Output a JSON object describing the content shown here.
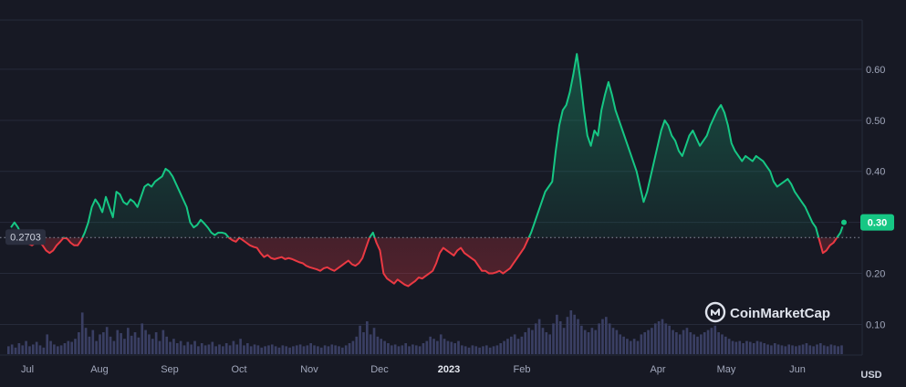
{
  "chart_data": {
    "type": "area",
    "ylim": [
      0.04,
      0.7
    ],
    "y_ticks": [
      "0.10",
      "0.20",
      "0.30",
      "0.40",
      "0.50",
      "0.60"
    ],
    "x_ticks": [
      "Jul",
      "Aug",
      "Sep",
      "Oct",
      "Nov",
      "Dec",
      "2023",
      "Feb",
      "Apr",
      "May",
      "Jun"
    ],
    "bold_tick": "2023",
    "currency_label": "USD",
    "reference_value": 0.2703,
    "reference_label": "0.2703",
    "current_value": 0.3,
    "current_label": "0.30",
    "watermark": "CoinMarketCap",
    "grid": true,
    "colors": {
      "up": "#16c784",
      "down": "#ea3943",
      "volume": "#3a3f63",
      "grid": "#262a3a"
    },
    "series": [
      {
        "values": [
          0.29,
          0.3,
          0.29,
          0.275,
          0.265,
          0.258,
          0.255,
          0.26,
          0.262,
          0.255,
          0.245,
          0.24,
          0.245,
          0.255,
          0.262,
          0.27,
          0.268,
          0.26,
          0.255,
          0.255,
          0.265,
          0.28,
          0.3,
          0.33,
          0.345,
          0.335,
          0.32,
          0.35,
          0.33,
          0.31,
          0.36,
          0.355,
          0.34,
          0.335,
          0.345,
          0.34,
          0.33,
          0.35,
          0.37,
          0.375,
          0.37,
          0.38,
          0.385,
          0.39,
          0.405,
          0.4,
          0.39,
          0.375,
          0.36,
          0.345,
          0.33,
          0.3,
          0.29,
          0.295,
          0.305,
          0.298,
          0.29,
          0.28,
          0.275,
          0.28,
          0.28,
          0.278,
          0.27,
          0.265,
          0.262,
          0.27,
          0.265,
          0.26,
          0.255,
          0.252,
          0.25,
          0.24,
          0.232,
          0.236,
          0.23,
          0.228,
          0.23,
          0.232,
          0.228,
          0.23,
          0.228,
          0.225,
          0.222,
          0.22,
          0.215,
          0.212,
          0.21,
          0.208,
          0.205,
          0.21,
          0.212,
          0.208,
          0.205,
          0.21,
          0.215,
          0.22,
          0.225,
          0.218,
          0.215,
          0.22,
          0.23,
          0.25,
          0.27,
          0.28,
          0.26,
          0.245,
          0.2,
          0.19,
          0.185,
          0.18,
          0.188,
          0.183,
          0.178,
          0.175,
          0.18,
          0.185,
          0.192,
          0.19,
          0.195,
          0.2,
          0.205,
          0.22,
          0.24,
          0.25,
          0.245,
          0.24,
          0.235,
          0.245,
          0.25,
          0.24,
          0.235,
          0.23,
          0.225,
          0.215,
          0.205,
          0.205,
          0.2,
          0.2,
          0.202,
          0.205,
          0.2,
          0.205,
          0.21,
          0.22,
          0.23,
          0.24,
          0.25,
          0.265,
          0.28,
          0.3,
          0.32,
          0.34,
          0.36,
          0.37,
          0.38,
          0.44,
          0.49,
          0.52,
          0.53,
          0.555,
          0.59,
          0.63,
          0.58,
          0.52,
          0.47,
          0.45,
          0.48,
          0.47,
          0.52,
          0.55,
          0.575,
          0.55,
          0.52,
          0.5,
          0.48,
          0.46,
          0.44,
          0.42,
          0.4,
          0.37,
          0.34,
          0.36,
          0.39,
          0.42,
          0.45,
          0.48,
          0.5,
          0.49,
          0.47,
          0.46,
          0.44,
          0.43,
          0.45,
          0.47,
          0.48,
          0.465,
          0.45,
          0.46,
          0.47,
          0.49,
          0.505,
          0.52,
          0.53,
          0.515,
          0.49,
          0.455,
          0.44,
          0.43,
          0.42,
          0.43,
          0.425,
          0.42,
          0.43,
          0.425,
          0.42,
          0.41,
          0.4,
          0.38,
          0.37,
          0.375,
          0.38,
          0.385,
          0.375,
          0.36,
          0.35,
          0.34,
          0.33,
          0.315,
          0.3,
          0.29,
          0.265,
          0.24,
          0.245,
          0.255,
          0.26,
          0.27,
          0.28,
          0.3
        ]
      }
    ],
    "volume": [
      0.18,
      0.22,
      0.15,
      0.25,
      0.2,
      0.3,
      0.18,
      0.22,
      0.28,
      0.2,
      0.15,
      0.45,
      0.3,
      0.22,
      0.18,
      0.2,
      0.25,
      0.3,
      0.28,
      0.35,
      0.5,
      0.95,
      0.6,
      0.4,
      0.55,
      0.3,
      0.45,
      0.5,
      0.62,
      0.4,
      0.3,
      0.55,
      0.48,
      0.35,
      0.6,
      0.42,
      0.5,
      0.38,
      0.7,
      0.55,
      0.45,
      0.35,
      0.5,
      0.3,
      0.55,
      0.4,
      0.28,
      0.35,
      0.25,
      0.3,
      0.2,
      0.28,
      0.22,
      0.3,
      0.18,
      0.25,
      0.2,
      0.22,
      0.28,
      0.18,
      0.22,
      0.18,
      0.25,
      0.2,
      0.3,
      0.22,
      0.35,
      0.2,
      0.25,
      0.18,
      0.22,
      0.2,
      0.15,
      0.18,
      0.2,
      0.22,
      0.18,
      0.15,
      0.2,
      0.18,
      0.15,
      0.18,
      0.2,
      0.22,
      0.18,
      0.2,
      0.25,
      0.2,
      0.18,
      0.15,
      0.2,
      0.18,
      0.22,
      0.2,
      0.18,
      0.15,
      0.2,
      0.25,
      0.3,
      0.4,
      0.65,
      0.5,
      0.75,
      0.45,
      0.6,
      0.4,
      0.35,
      0.3,
      0.25,
      0.2,
      0.22,
      0.18,
      0.2,
      0.25,
      0.18,
      0.22,
      0.2,
      0.18,
      0.25,
      0.3,
      0.4,
      0.35,
      0.3,
      0.45,
      0.35,
      0.3,
      0.28,
      0.25,
      0.3,
      0.2,
      0.18,
      0.15,
      0.2,
      0.18,
      0.15,
      0.18,
      0.2,
      0.15,
      0.18,
      0.2,
      0.25,
      0.3,
      0.35,
      0.4,
      0.45,
      0.35,
      0.4,
      0.5,
      0.6,
      0.55,
      0.7,
      0.8,
      0.6,
      0.5,
      0.45,
      0.7,
      0.9,
      0.75,
      0.6,
      0.85,
      1.0,
      0.9,
      0.8,
      0.65,
      0.55,
      0.5,
      0.6,
      0.55,
      0.7,
      0.8,
      0.85,
      0.7,
      0.6,
      0.55,
      0.45,
      0.4,
      0.35,
      0.3,
      0.35,
      0.3,
      0.45,
      0.5,
      0.55,
      0.6,
      0.7,
      0.75,
      0.8,
      0.7,
      0.65,
      0.55,
      0.5,
      0.45,
      0.55,
      0.6,
      0.5,
      0.45,
      0.4,
      0.45,
      0.5,
      0.55,
      0.6,
      0.65,
      0.5,
      0.45,
      0.4,
      0.35,
      0.3,
      0.28,
      0.3,
      0.25,
      0.3,
      0.28,
      0.25,
      0.3,
      0.28,
      0.25,
      0.22,
      0.2,
      0.25,
      0.22,
      0.2,
      0.18,
      0.22,
      0.2,
      0.18,
      0.2,
      0.22,
      0.25,
      0.2,
      0.18,
      0.22,
      0.25,
      0.2,
      0.18,
      0.22,
      0.2,
      0.18,
      0.2
    ]
  }
}
